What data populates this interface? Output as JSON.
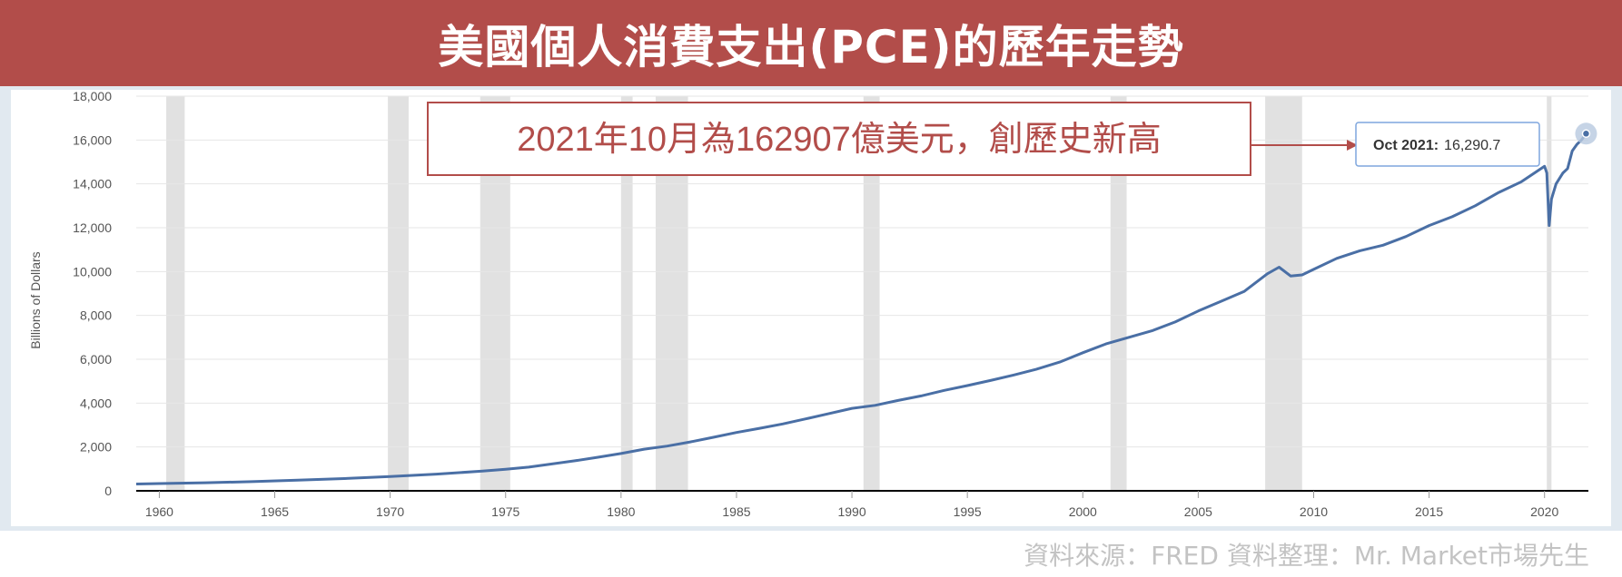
{
  "banner": {
    "title": "美國個人消費支出(PCE)的歷年走勢"
  },
  "annotation": {
    "text": "2021年10月為162907億美元，創歷史新高"
  },
  "tooltip": {
    "label": "Oct 2021:",
    "value": "16,290.7"
  },
  "source": {
    "text": "資料來源：FRED  資料整理：Mr. Market市場先生"
  },
  "colors": {
    "banner": "#b24d4a",
    "line": "#4a6fa5",
    "recession": "#e1e1e1",
    "frame": "#e1e9f0",
    "annotation_border": "#b24d4a"
  },
  "chart_data": {
    "type": "line",
    "title": "",
    "xlabel": "",
    "ylabel": "Billions of Dollars",
    "xlim": [
      1959,
      2021.9
    ],
    "ylim": [
      0,
      18000
    ],
    "yticks": [
      0,
      2000,
      4000,
      6000,
      8000,
      10000,
      12000,
      14000,
      16000,
      18000
    ],
    "ytick_labels": [
      "0",
      "2,000",
      "4,000",
      "6,000",
      "8,000",
      "10,000",
      "12,000",
      "14,000",
      "16,000",
      "18,000"
    ],
    "xticks": [
      1960,
      1965,
      1970,
      1975,
      1980,
      1985,
      1990,
      1995,
      2000,
      2005,
      2010,
      2015,
      2020
    ],
    "xtick_labels": [
      "1960",
      "1965",
      "1970",
      "1975",
      "1980",
      "1985",
      "1990",
      "1995",
      "2000",
      "2005",
      "2010",
      "2015",
      "2020"
    ],
    "grid": true,
    "recessions": [
      [
        1960.3,
        1961.1
      ],
      [
        1969.9,
        1970.8
      ],
      [
        1973.9,
        1975.2
      ],
      [
        1980.0,
        1980.5
      ],
      [
        1981.5,
        1982.9
      ],
      [
        1990.5,
        1991.2
      ],
      [
        2001.2,
        2001.9
      ],
      [
        2007.9,
        2009.5
      ],
      [
        2020.1,
        2020.3
      ]
    ],
    "series": [
      {
        "name": "",
        "x": [
          1959.0,
          1960.0,
          1962.0,
          1964.0,
          1966.0,
          1968.0,
          1970.0,
          1972.0,
          1974.0,
          1975.0,
          1976.0,
          1978.0,
          1979.0,
          1980.0,
          1981.0,
          1982.0,
          1983.0,
          1984.0,
          1985.0,
          1986.0,
          1987.0,
          1988.0,
          1989.0,
          1990.0,
          1991.0,
          1992.0,
          1993.0,
          1994.0,
          1995.0,
          1996.0,
          1997.0,
          1998.0,
          1999.0,
          2000.0,
          2001.0,
          2002.0,
          2003.0,
          2004.0,
          2005.0,
          2006.0,
          2007.0,
          2008.0,
          2008.5,
          2009.0,
          2009.5,
          2010.0,
          2011.0,
          2012.0,
          2013.0,
          2014.0,
          2015.0,
          2016.0,
          2017.0,
          2018.0,
          2019.0,
          2020.0,
          2020.1,
          2020.2,
          2020.3,
          2020.5,
          2020.8,
          2021.0,
          2021.2,
          2021.4,
          2021.6,
          2021.8
        ],
        "y": [
          310,
          330,
          370,
          420,
          490,
          560,
          650,
          760,
          900,
          980,
          1080,
          1370,
          1530,
          1700,
          1900,
          2040,
          2230,
          2440,
          2660,
          2850,
          3050,
          3280,
          3520,
          3760,
          3900,
          4120,
          4330,
          4580,
          4800,
          5030,
          5280,
          5550,
          5870,
          6300,
          6700,
          7000,
          7300,
          7700,
          8200,
          8650,
          9100,
          9900,
          10200,
          9800,
          9850,
          10100,
          10600,
          10950,
          11200,
          11600,
          12100,
          12500,
          13000,
          13600,
          14100,
          14800,
          14500,
          12100,
          13300,
          14000,
          14500,
          14700,
          15500,
          15800,
          16000,
          16290.7
        ]
      }
    ]
  }
}
